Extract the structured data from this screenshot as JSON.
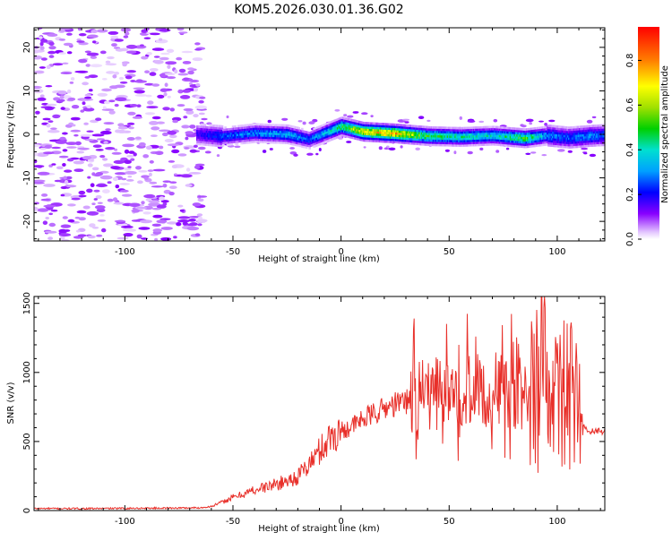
{
  "title": "KOM5.2026.030.01.36.G02",
  "chart_data": [
    {
      "type": "heatmap",
      "title": "KOM5.2026.030.01.36.G02",
      "xlabel": "Height of straight line (km)",
      "ylabel": "Frequency (Hz)",
      "xlim": [
        -142,
        122
      ],
      "ylim": [
        -24.5,
        24.5
      ],
      "xticks": [
        -100,
        -50,
        0,
        50,
        100
      ],
      "yticks": [
        20,
        10,
        0,
        -10,
        -20
      ],
      "grid": false,
      "signal_band": {
        "description_points_x": [
          -67,
          -55,
          -40,
          -25,
          -15,
          -5,
          0,
          10,
          25,
          40,
          55,
          70,
          85,
          95,
          105,
          115,
          122
        ],
        "frequency_hz": [
          0.0,
          -0.5,
          0.3,
          0.0,
          -1.2,
          0.8,
          1.8,
          0.6,
          0.2,
          -0.4,
          -0.6,
          -0.3,
          -0.9,
          -0.3,
          -0.8,
          -0.4,
          -0.2
        ],
        "peak_amplitude": [
          0.2,
          0.3,
          0.35,
          0.4,
          0.3,
          0.45,
          0.55,
          0.8,
          0.85,
          0.55,
          0.5,
          0.45,
          0.6,
          0.35,
          0.3,
          0.35,
          0.3
        ]
      },
      "colorbar": {
        "label": "Normalized spectral amplitude",
        "range": [
          0.0,
          0.95
        ],
        "ticks": [
          0.0,
          0.2,
          0.4,
          0.6,
          0.8
        ],
        "tick_labels": [
          "0.0",
          "0.2",
          "0.4",
          "0.6",
          "0.8"
        ]
      }
    },
    {
      "type": "line",
      "xlabel": "Height of straight line (km)",
      "ylabel": "SNR (v/v)",
      "xlim": [
        -142,
        122
      ],
      "ylim": [
        0,
        1550
      ],
      "xticks": [
        -100,
        -50,
        0,
        50,
        100
      ],
      "yticks": [
        0,
        500,
        1000,
        1500
      ],
      "color": "#e8302a",
      "grid": false,
      "series": [
        {
          "name": "SNR",
          "x": [
            -142,
            -120,
            -100,
            -80,
            -65,
            -60,
            -55,
            -50,
            -45,
            -40,
            -35,
            -30,
            -25,
            -20,
            -15,
            -10,
            -5,
            0,
            5,
            10,
            15,
            20,
            25,
            30,
            33,
            35,
            40,
            45,
            50,
            55,
            60,
            65,
            70,
            75,
            80,
            85,
            90,
            92,
            94,
            96,
            100,
            105,
            110,
            113,
            115,
            118,
            122
          ],
          "y": [
            15,
            14,
            16,
            18,
            20,
            30,
            60,
            95,
            120,
            150,
            170,
            190,
            215,
            245,
            330,
            430,
            530,
            580,
            610,
            660,
            700,
            740,
            770,
            790,
            820,
            810,
            850,
            850,
            880,
            870,
            860,
            870,
            880,
            860,
            870,
            850,
            820,
            900,
            1450,
            700,
            820,
            780,
            720,
            600,
            580,
            570,
            575
          ]
        }
      ]
    }
  ]
}
